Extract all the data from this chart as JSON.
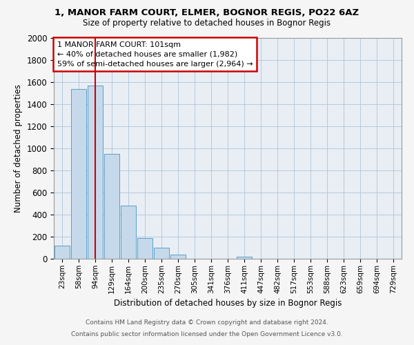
{
  "title1": "1, MANOR FARM COURT, ELMER, BOGNOR REGIS, PO22 6AZ",
  "title2": "Size of property relative to detached houses in Bognor Regis",
  "xlabel": "Distribution of detached houses by size in Bognor Regis",
  "ylabel": "Number of detached properties",
  "categories": [
    "23sqm",
    "58sqm",
    "94sqm",
    "129sqm",
    "164sqm",
    "200sqm",
    "235sqm",
    "270sqm",
    "305sqm",
    "341sqm",
    "376sqm",
    "411sqm",
    "447sqm",
    "482sqm",
    "517sqm",
    "553sqm",
    "588sqm",
    "623sqm",
    "659sqm",
    "694sqm",
    "729sqm"
  ],
  "values": [
    120,
    1540,
    1570,
    950,
    480,
    190,
    100,
    40,
    0,
    0,
    0,
    20,
    0,
    0,
    0,
    0,
    0,
    0,
    0,
    0,
    0
  ],
  "bar_color": "#c6d9eb",
  "bar_edge_color": "#5b9ec9",
  "vline_x": 2,
  "vline_color": "#cc0000",
  "annotation_text": "1 MANOR FARM COURT: 101sqm\n← 40% of detached houses are smaller (1,982)\n59% of semi-detached houses are larger (2,964) →",
  "annotation_box_color": "#ffffff",
  "annotation_box_edge": "#cc0000",
  "ylim": [
    0,
    2000
  ],
  "yticks": [
    0,
    200,
    400,
    600,
    800,
    1000,
    1200,
    1400,
    1600,
    1800,
    2000
  ],
  "footer1": "Contains HM Land Registry data © Crown copyright and database right 2024.",
  "footer2": "Contains public sector information licensed under the Open Government Licence v3.0.",
  "background_color": "#f5f5f5",
  "plot_bg_color": "#e8eef4"
}
